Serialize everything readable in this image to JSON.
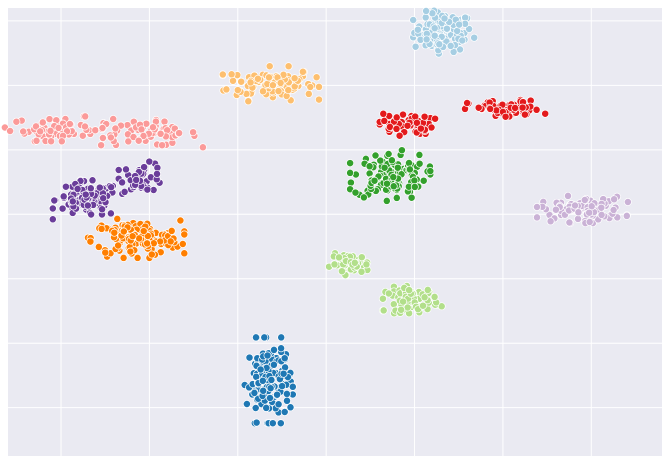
{
  "chart_data": {
    "type": "scatter",
    "title": "",
    "xlabel": "",
    "ylabel": "",
    "grid": true,
    "legend": "none",
    "x_gridlines": [
      -60,
      -40,
      -20,
      0,
      20,
      40,
      60
    ],
    "y_gridlines": [
      -60,
      -40,
      -20,
      0,
      20,
      40,
      60
    ],
    "xlim": [
      -72,
      76
    ],
    "ylim": [
      -75,
      64
    ],
    "background": "#eaeaf2",
    "gridline_color": "#ffffff",
    "marker_edge_color": "#ffffff",
    "series": [
      {
        "color": "#a6cee3",
        "clusters": [
          {
            "center": [
              26.5,
              56.5
            ],
            "spread": [
              6.0,
              5.5
            ],
            "n": 110
          }
        ]
      },
      {
        "color": "#fdbf6f",
        "clusters": [
          {
            "center": [
              -12.5,
              40.5
            ],
            "spread": [
              9.0,
              4.5
            ],
            "n": 110
          }
        ]
      },
      {
        "color": "#fb9a99",
        "clusters": [
          {
            "center": [
              -60.0,
              26.5
            ],
            "spread": [
              10.5,
              3.2
            ],
            "n": 70
          },
          {
            "center": [
              -40.0,
              25.0
            ],
            "spread": [
              10.0,
              3.5
            ],
            "n": 60
          }
        ]
      },
      {
        "color": "#6a3d9a",
        "clusters": [
          {
            "center": [
              -54.0,
              4.5
            ],
            "spread": [
              6.5,
              5.0
            ],
            "n": 110
          },
          {
            "center": [
              -41.5,
              11.5
            ],
            "spread": [
              4.5,
              4.0
            ],
            "n": 40
          }
        ]
      },
      {
        "color": "#ff7f00",
        "clusters": [
          {
            "center": [
              -43.0,
              -7.5
            ],
            "spread": [
              9.0,
              5.0
            ],
            "n": 150
          }
        ]
      },
      {
        "color": "#33a02c",
        "clusters": [
          {
            "center": [
              14.5,
              12.0
            ],
            "spread": [
              7.5,
              6.5
            ],
            "n": 120
          }
        ]
      },
      {
        "color": "#e31a1c",
        "clusters": [
          {
            "center": [
              18.0,
              28.0
            ],
            "spread": [
              5.5,
              3.0
            ],
            "n": 60
          },
          {
            "center": [
              40.5,
              32.5
            ],
            "spread": [
              7.5,
              2.5
            ],
            "n": 70
          }
        ]
      },
      {
        "color": "#cab2d6",
        "clusters": [
          {
            "center": [
              58.0,
              1.5
            ],
            "spread": [
              8.5,
              3.5
            ],
            "n": 100
          }
        ]
      },
      {
        "color": "#b2df8a",
        "clusters": [
          {
            "center": [
              5.5,
              -15.5
            ],
            "spread": [
              4.0,
              2.8
            ],
            "n": 50
          },
          {
            "center": [
              19.5,
              -26.5
            ],
            "spread": [
              5.5,
              3.5
            ],
            "n": 70
          }
        ]
      },
      {
        "color": "#1f78b4",
        "clusters": [
          {
            "center": [
              -13.0,
              -51.5
            ],
            "spread": [
              4.5,
              11.0
            ],
            "n": 150
          }
        ]
      }
    ]
  }
}
